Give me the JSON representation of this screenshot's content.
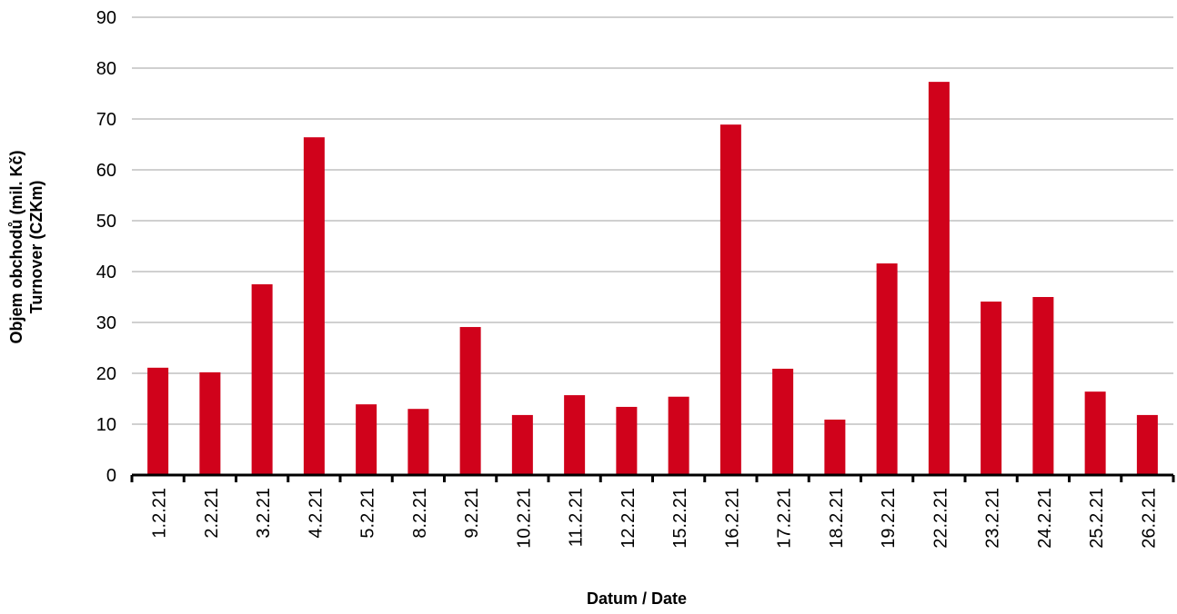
{
  "chart_data": {
    "type": "bar",
    "y_label": [
      "Objem obchodů (mil. Kč)",
      "Turnover (CZKm)"
    ],
    "x_label": "Datum / Date",
    "categories": [
      "1.2.21",
      "2.2.21",
      "3.2.21",
      "4.2.21",
      "5.2.21",
      "8.2.21",
      "9.2.21",
      "10.2.21",
      "11.2.21",
      "12.2.21",
      "15.2.21",
      "16.2.21",
      "17.2.21",
      "18.2.21",
      "19.2.21",
      "22.2.21",
      "23.2.21",
      "24.2.21",
      "25.2.21",
      "26.2.21"
    ],
    "values": [
      21.1,
      20.2,
      37.5,
      66.4,
      13.9,
      13.0,
      29.1,
      11.8,
      15.7,
      13.4,
      15.4,
      68.9,
      20.9,
      10.9,
      41.6,
      77.3,
      34.1,
      35.0,
      16.4,
      11.8
    ],
    "color": "#d0021b",
    "ylim": [
      0,
      90
    ],
    "yticks": [
      0,
      10,
      20,
      30,
      40,
      50,
      60,
      70,
      80,
      90
    ],
    "grid": true
  }
}
